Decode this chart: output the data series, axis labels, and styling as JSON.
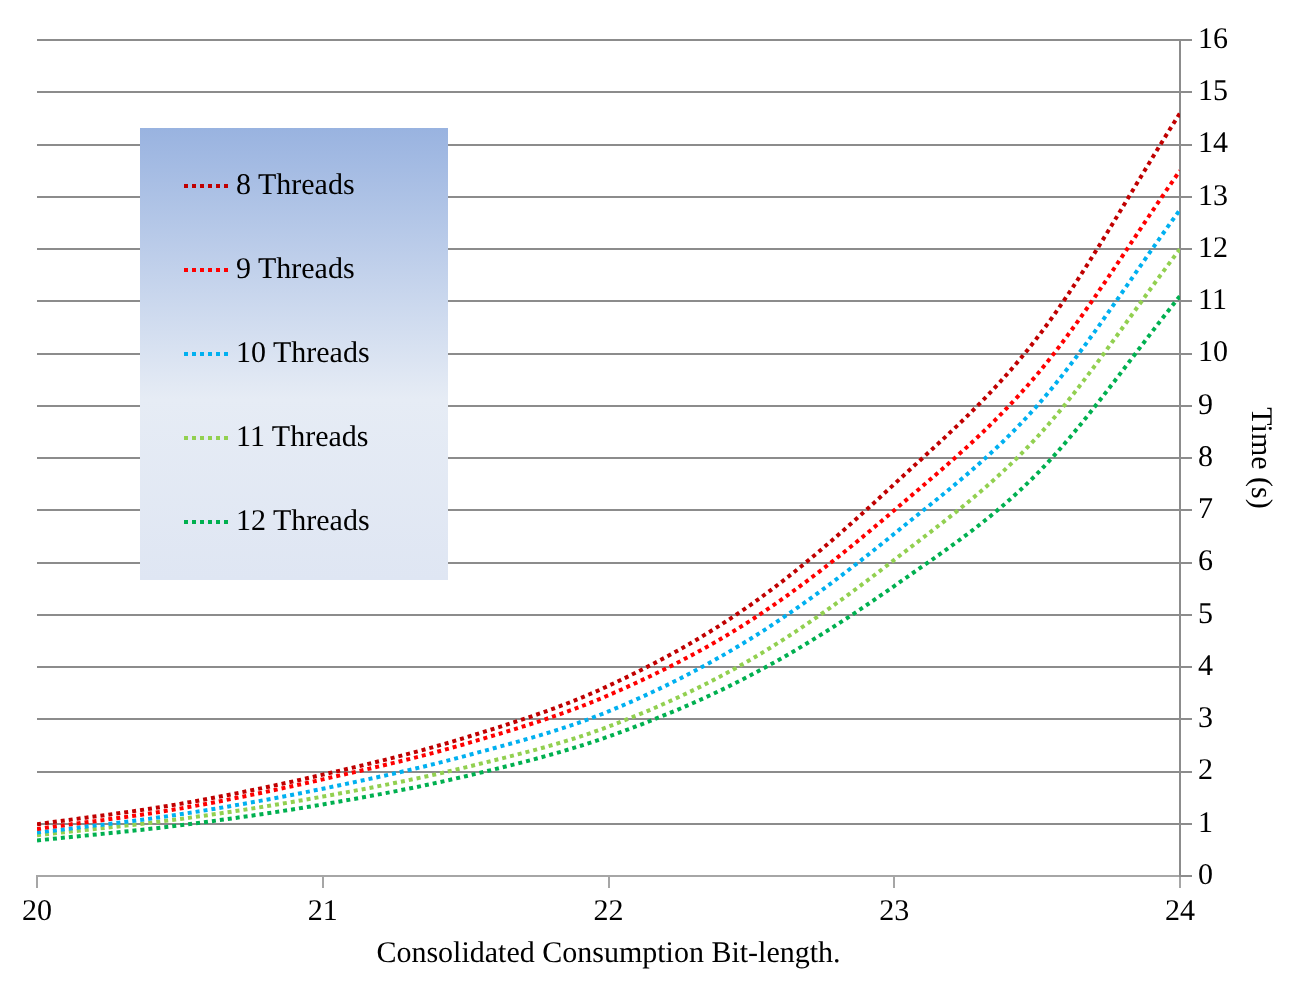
{
  "chart_data": {
    "type": "line",
    "xlabel": "Consolidated Consumption Bit-length.",
    "ylabel": "Time (s)",
    "x": [
      20,
      20.5,
      21,
      21.5,
      22,
      22.5,
      23,
      23.5,
      24
    ],
    "series": [
      {
        "name": "8 Threads",
        "color": "#c00000",
        "values": [
          0.99,
          1.38,
          1.94,
          2.65,
          3.64,
          5.2,
          7.5,
          10.3,
          14.6
        ]
      },
      {
        "name": "9 Threads",
        "color": "#ff0000",
        "values": [
          0.9,
          1.29,
          1.85,
          2.53,
          3.46,
          4.9,
          7.0,
          9.6,
          13.5
        ]
      },
      {
        "name": "10 Threads",
        "color": "#00b0f0",
        "values": [
          0.83,
          1.18,
          1.67,
          2.3,
          3.15,
          4.55,
          6.55,
          9.0,
          12.75
        ]
      },
      {
        "name": "11 Threads",
        "color": "#92d050",
        "values": [
          0.78,
          1.09,
          1.52,
          2.08,
          2.86,
          4.15,
          6.05,
          8.4,
          12.0
        ]
      },
      {
        "name": "12 Threads",
        "color": "#00b050",
        "values": [
          0.68,
          0.97,
          1.37,
          1.91,
          2.67,
          3.85,
          5.55,
          7.7,
          11.1
        ]
      }
    ],
    "xlim": [
      20,
      24
    ],
    "xticks": [
      20,
      21,
      22,
      23,
      24
    ],
    "ylim": [
      0,
      16
    ],
    "yticks": [
      0,
      1,
      2,
      3,
      4,
      5,
      6,
      7,
      8,
      9,
      10,
      11,
      12,
      13,
      14,
      15,
      16
    ],
    "grid": "y",
    "legend": "top left",
    "marker": "none",
    "line_style": "dotted"
  }
}
